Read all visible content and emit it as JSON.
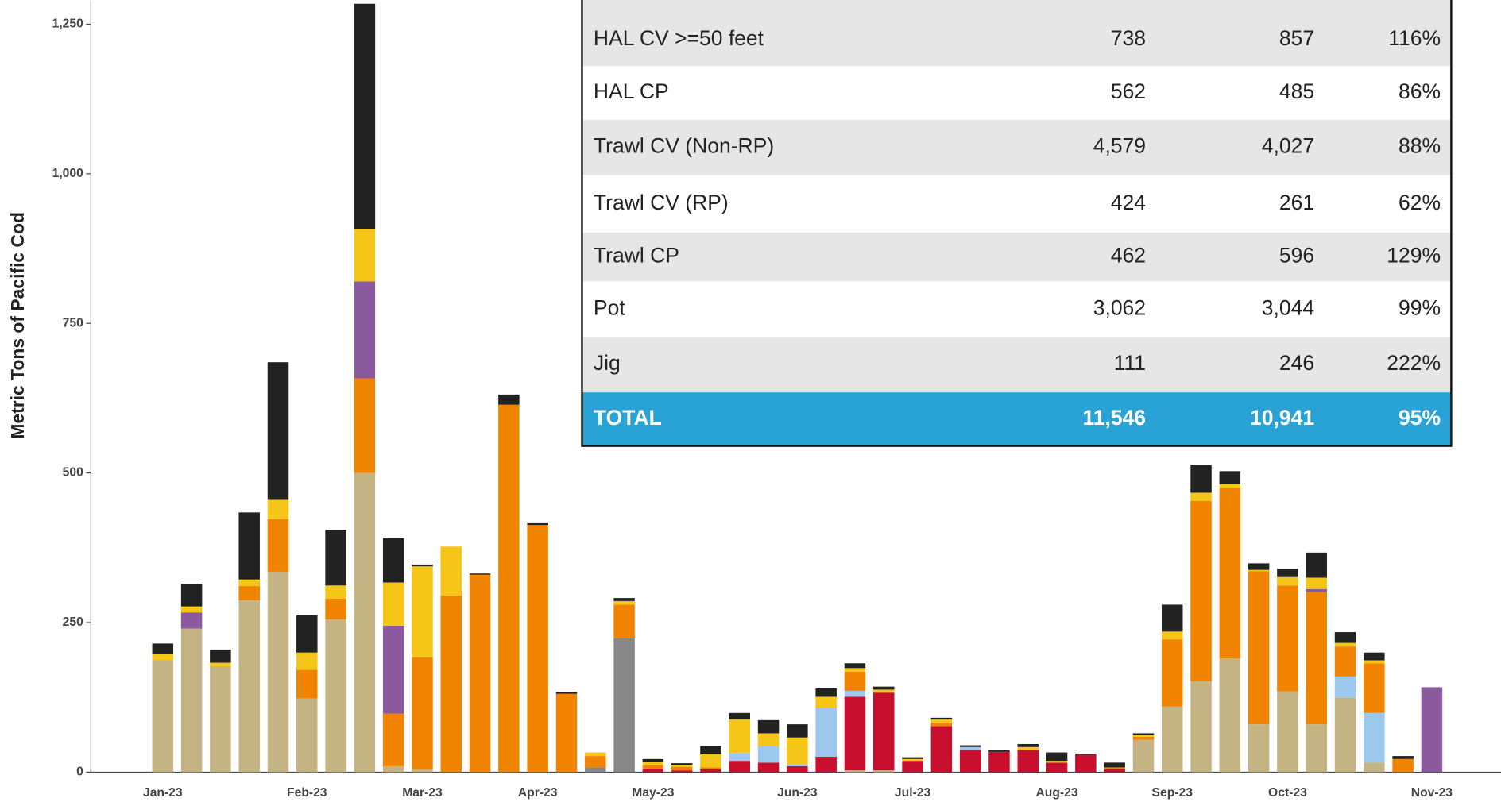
{
  "chart_data": {
    "type": "stacked_bar",
    "ylabel": "Metric Tons of Pacific Cod",
    "categories": [
      "Jan-23",
      null,
      null,
      null,
      null,
      "Feb-23",
      null,
      null,
      null,
      "Mar-23",
      null,
      null,
      null,
      "Apr-23",
      null,
      null,
      null,
      "May-23",
      null,
      null,
      null,
      null,
      "Jun-23",
      null,
      null,
      null,
      "Jul-23",
      null,
      null,
      null,
      null,
      "Aug-23",
      null,
      null,
      null,
      "Sep-23",
      null,
      null,
      null,
      "Oct-23",
      null,
      null,
      null,
      null,
      "Nov-23"
    ],
    "ylim": [
      0,
      1290
    ],
    "yticks": [
      0,
      250,
      500,
      750,
      {
        "value": 1000,
        "label": "1,000"
      },
      {
        "value": 1250,
        "label": "1,250"
      }
    ],
    "series": [
      {
        "color": "#c4b483",
        "values": [
          187,
          240,
          177,
          287,
          335,
          123,
          255,
          500,
          10,
          5,
          0,
          0,
          0,
          0,
          0,
          0,
          0,
          0,
          0,
          0,
          0,
          0,
          0,
          0,
          3,
          3,
          0,
          0,
          0,
          0,
          0,
          0,
          0,
          0,
          54,
          110,
          152,
          190,
          80,
          135,
          80,
          125,
          16,
          0,
          0
        ]
      },
      {
        "color": "#888888",
        "values": [
          0,
          0,
          0,
          0,
          0,
          0,
          0,
          0,
          0,
          0,
          0,
          0,
          0,
          0,
          0,
          8,
          224,
          0,
          0,
          0,
          0,
          0,
          0,
          0,
          0,
          0,
          0,
          0,
          0,
          0,
          0,
          0,
          0,
          0,
          0,
          0,
          0,
          0,
          0,
          0,
          0,
          0,
          0,
          0,
          0
        ]
      },
      {
        "color": "#c8102e",
        "values": [
          0,
          0,
          0,
          0,
          0,
          0,
          0,
          0,
          0,
          0,
          0,
          0,
          0,
          0,
          0,
          0,
          0,
          6,
          3,
          5,
          19,
          16,
          10,
          26,
          123,
          130,
          19,
          77,
          37,
          34,
          37,
          16,
          29,
          5,
          0,
          0,
          0,
          0,
          0,
          0,
          0,
          0,
          0,
          0,
          0
        ]
      },
      {
        "color": "#9cc8ee",
        "values": [
          0,
          0,
          0,
          0,
          0,
          0,
          0,
          0,
          0,
          0,
          0,
          0,
          0,
          0,
          0,
          0,
          0,
          0,
          0,
          0,
          13,
          27,
          3,
          82,
          10,
          0,
          0,
          0,
          5,
          0,
          0,
          0,
          0,
          0,
          0,
          0,
          0,
          0,
          0,
          0,
          0,
          35,
          83,
          0,
          0
        ]
      },
      {
        "color": "#f08300",
        "values": [
          0,
          0,
          0,
          24,
          88,
          48,
          35,
          158,
          88,
          187,
          295,
          330,
          614,
          413,
          131,
          19,
          56,
          6,
          6,
          3,
          0,
          0,
          0,
          0,
          32,
          0,
          0,
          6,
          0,
          0,
          0,
          0,
          0,
          3,
          5,
          112,
          301,
          285,
          256,
          177,
          221,
          50,
          83,
          22,
          0
        ]
      },
      {
        "color": "#8b5a9e",
        "values": [
          0,
          27,
          0,
          0,
          0,
          0,
          0,
          162,
          147,
          0,
          0,
          0,
          0,
          0,
          0,
          0,
          0,
          0,
          0,
          0,
          0,
          0,
          0,
          0,
          0,
          0,
          0,
          0,
          0,
          0,
          0,
          0,
          0,
          0,
          0,
          0,
          0,
          0,
          0,
          0,
          5,
          0,
          0,
          0,
          142
        ]
      },
      {
        "color": "#f5c518",
        "values": [
          10,
          10,
          6,
          11,
          32,
          29,
          22,
          88,
          72,
          152,
          82,
          0,
          0,
          0,
          0,
          6,
          6,
          5,
          3,
          22,
          56,
          22,
          45,
          18,
          6,
          5,
          3,
          5,
          0,
          0,
          5,
          3,
          0,
          0,
          3,
          13,
          14,
          6,
          2,
          14,
          19,
          6,
          5,
          0,
          0
        ]
      },
      {
        "color": "#222222",
        "values": [
          18,
          38,
          22,
          112,
          230,
          62,
          93,
          376,
          74,
          3,
          0,
          2,
          17,
          3,
          3,
          0,
          5,
          5,
          3,
          14,
          11,
          22,
          22,
          14,
          8,
          5,
          3,
          3,
          3,
          3,
          5,
          14,
          2,
          8,
          3,
          45,
          46,
          22,
          11,
          14,
          42,
          18,
          13,
          5,
          0
        ]
      }
    ]
  },
  "table": {
    "rows": [
      [
        "HAL CV >=50 feet",
        "738",
        "857",
        "116%"
      ],
      [
        "HAL CP",
        "562",
        "485",
        "86%"
      ],
      [
        "Trawl CV (Non-RP)",
        "4,579",
        "4,027",
        "88%"
      ],
      [
        "Trawl CV (RP)",
        "424",
        "261",
        "62%"
      ],
      [
        "Trawl CP",
        "462",
        "596",
        "129%"
      ],
      [
        "Pot",
        "3,062",
        "3,044",
        "99%"
      ],
      [
        "Jig",
        "111",
        "246",
        "222%"
      ],
      [
        "TOTAL",
        "11,546",
        "10,941",
        "95%"
      ]
    ]
  }
}
